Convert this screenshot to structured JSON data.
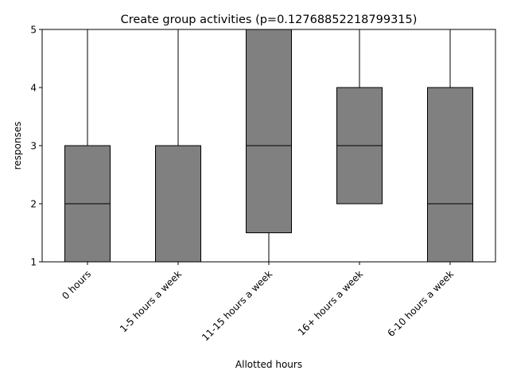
{
  "chart_data": {
    "type": "box",
    "title": "Create group activities (p=0.12768852218799315)",
    "xlabel": "Allotted hours",
    "ylabel": "responses",
    "ylim": [
      1,
      5
    ],
    "yticks": [
      "1",
      "2",
      "3",
      "4",
      "5"
    ],
    "grid": false,
    "categories": [
      "0 hours",
      "1-5 hours a week",
      "11-15 hours a week",
      "16+ hours a week",
      "6-10 hours a week"
    ],
    "boxes": [
      {
        "whisker_low": 1,
        "q1": 1,
        "median": 2,
        "q3": 3,
        "whisker_high": 5
      },
      {
        "whisker_low": 1,
        "q1": 1,
        "median": 1,
        "q3": 3,
        "whisker_high": 5
      },
      {
        "whisker_low": 1,
        "q1": 1.5,
        "median": 3,
        "q3": 5,
        "whisker_high": 5
      },
      {
        "whisker_low": 2,
        "q1": 2,
        "median": 3,
        "q3": 4,
        "whisker_high": 5
      },
      {
        "whisker_low": 1,
        "q1": 1,
        "median": 2,
        "q3": 4,
        "whisker_high": 5
      }
    ],
    "colors": {
      "box_fill": "#808080",
      "edge": "#000000",
      "median": "#000000"
    }
  }
}
